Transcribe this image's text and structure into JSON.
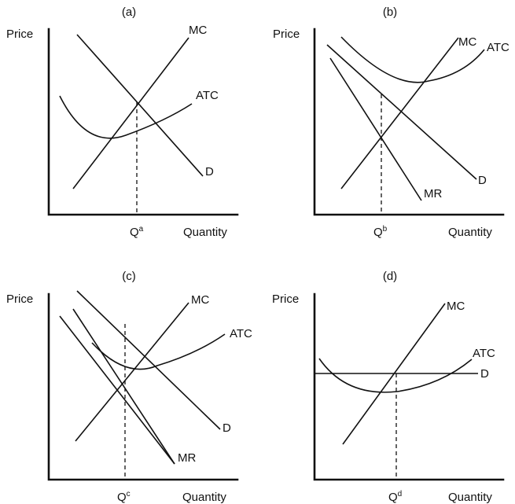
{
  "panels": [
    {
      "key": "a",
      "title": "(a)",
      "y_label": "Price",
      "x_label": "Quantity",
      "q_label": "Q",
      "q_sup": "a",
      "curves": {
        "mc": "MC",
        "atc": "ATC",
        "d": "D"
      }
    },
    {
      "key": "b",
      "title": "(b)",
      "y_label": "Price",
      "x_label": "Quantity",
      "q_label": "Q",
      "q_sup": "b",
      "curves": {
        "mc": "MC",
        "atc": "ATC",
        "d": "D",
        "mr": "MR"
      }
    },
    {
      "key": "c",
      "title": "(c)",
      "y_label": "Price",
      "x_label": "Quantity",
      "q_label": "Q",
      "q_sup": "c",
      "curves": {
        "mc": "MC",
        "atc": "ATC",
        "d": "D",
        "mr": "MR"
      }
    },
    {
      "key": "d",
      "title": "(d)",
      "y_label": "Price",
      "x_label": "Quantity",
      "q_label": "Q",
      "q_sup": "d",
      "curves": {
        "mc": "MC",
        "atc": "ATC",
        "d": "D"
      }
    }
  ]
}
